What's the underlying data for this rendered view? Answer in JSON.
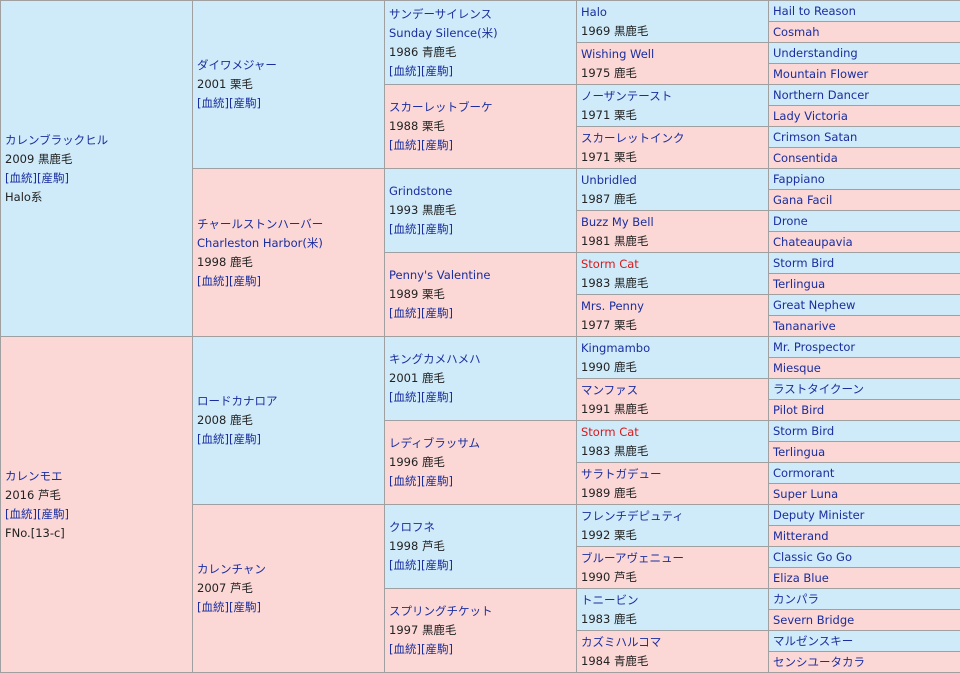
{
  "g1": [
    {
      "name": "カレンブラックヒル",
      "year": "2009",
      "coat": "黒鹿毛",
      "links": "[血統][産駒]",
      "extra": "Halo系"
    },
    {
      "name": "カレンモエ",
      "year": "2016",
      "coat": "芦毛",
      "links": "[血統][産駒]",
      "extra": "FNo.[13-c]"
    }
  ],
  "g2": [
    {
      "name": "ダイワメジャー",
      "year": "2001",
      "coat": "栗毛",
      "links": "[血統][産駒]"
    },
    {
      "name": "チャールストンハーバー",
      "eng": "Charleston Harbor(米)",
      "year": "1998",
      "coat": "鹿毛",
      "links": "[血統][産駒]"
    },
    {
      "name": "ロードカナロア",
      "year": "2008",
      "coat": "鹿毛",
      "links": "[血統][産駒]"
    },
    {
      "name": "カレンチャン",
      "year": "2007",
      "coat": "芦毛",
      "links": "[血統][産駒]"
    }
  ],
  "g3": [
    {
      "name": "サンデーサイレンス",
      "eng": "Sunday Silence(米)",
      "year": "1986",
      "coat": "青鹿毛",
      "links": "[血統][産駒]"
    },
    {
      "name": "スカーレットブーケ",
      "year": "1988",
      "coat": "栗毛",
      "links": "[血統][産駒]"
    },
    {
      "name": "Grindstone",
      "year": "1993",
      "coat": "黒鹿毛",
      "links": "[血統][産駒]"
    },
    {
      "name": "Penny's Valentine",
      "year": "1989",
      "coat": "栗毛",
      "links": "[血統][産駒]"
    },
    {
      "name": "キングカメハメハ",
      "year": "2001",
      "coat": "鹿毛",
      "links": "[血統][産駒]"
    },
    {
      "name": "レディブラッサム",
      "year": "1996",
      "coat": "鹿毛",
      "links": "[血統][産駒]"
    },
    {
      "name": "クロフネ",
      "year": "1998",
      "coat": "芦毛",
      "links": "[血統][産駒]"
    },
    {
      "name": "スプリングチケット",
      "year": "1997",
      "coat": "黒鹿毛",
      "links": "[血統][産駒]"
    }
  ],
  "g4": [
    {
      "name": "Halo",
      "year": "1969",
      "coat": "黒鹿毛"
    },
    {
      "name": "Wishing Well",
      "year": "1975",
      "coat": "鹿毛"
    },
    {
      "name": "ノーザンテースト",
      "year": "1971",
      "coat": "栗毛"
    },
    {
      "name": "スカーレットインク",
      "year": "1971",
      "coat": "栗毛"
    },
    {
      "name": "Unbridled",
      "year": "1987",
      "coat": "鹿毛"
    },
    {
      "name": "Buzz My Bell",
      "year": "1981",
      "coat": "黒鹿毛"
    },
    {
      "name": "Storm Cat",
      "year": "1983",
      "coat": "黒鹿毛"
    },
    {
      "name": "Mrs. Penny",
      "year": "1977",
      "coat": "栗毛"
    },
    {
      "name": "Kingmambo",
      "year": "1990",
      "coat": "鹿毛"
    },
    {
      "name": "マンファス",
      "year": "1991",
      "coat": "黒鹿毛"
    },
    {
      "name": "Storm Cat",
      "year": "1983",
      "coat": "黒鹿毛"
    },
    {
      "name": "サラトガデュー",
      "year": "1989",
      "coat": "鹿毛"
    },
    {
      "name": "フレンチデピュティ",
      "year": "1992",
      "coat": "栗毛"
    },
    {
      "name": "ブルーアヴェニュー",
      "year": "1990",
      "coat": "芦毛"
    },
    {
      "name": "トニービン",
      "year": "1983",
      "coat": "鹿毛"
    },
    {
      "name": "カズミハルコマ",
      "year": "1984",
      "coat": "青鹿毛"
    }
  ],
  "g5": [
    "Hail to Reason",
    "Cosmah",
    "Understanding",
    "Mountain Flower",
    "Northern Dancer",
    "Lady Victoria",
    "Crimson Satan",
    "Consentida",
    "Fappiano",
    "Gana Facil",
    "Drone",
    "Chateaupavia",
    "Storm Bird",
    "Terlingua",
    "Great Nephew",
    "Tananarive",
    "Mr. Prospector",
    "Miesque",
    "ラストタイクーン",
    "Pilot Bird",
    "Storm Bird",
    "Terlingua",
    "Cormorant",
    "Super Luna",
    "Deputy Minister",
    "Mitterand",
    "Classic Go Go",
    "Eliza Blue",
    "カンパラ",
    "Severn Bridge",
    "マルゼンスキー",
    "センシユータカラ"
  ],
  "colors": {
    "male_bg": "#cfeaf9",
    "female_bg": "#fbd7d5",
    "link": "#1a2e9e",
    "highlight": "#d81a1a",
    "border": "#a0a0a0"
  },
  "highlight_g4": [
    6,
    10
  ]
}
